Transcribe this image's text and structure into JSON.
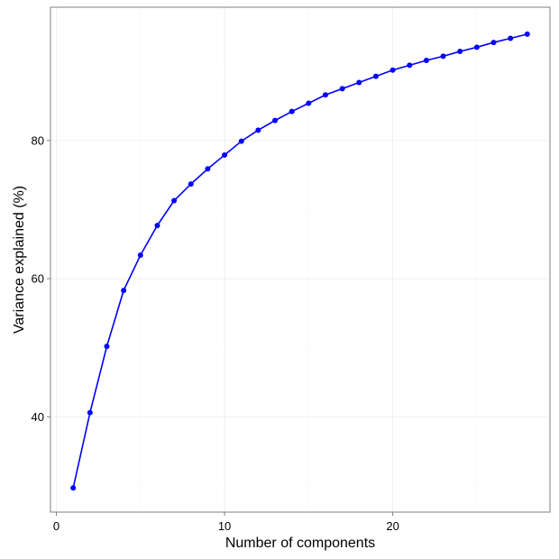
{
  "chart_data": {
    "type": "line",
    "xlabel": "Number of components",
    "ylabel": "Variance explained (%)",
    "xlim": [
      -0.35,
      29.35
    ],
    "ylim": [
      26.2,
      99.3
    ],
    "xticks": [
      0,
      10,
      20
    ],
    "yticks": [
      40,
      60,
      80
    ],
    "grid": true,
    "x": [
      1,
      2,
      3,
      4,
      5,
      6,
      7,
      8,
      9,
      10,
      11,
      12,
      13,
      14,
      15,
      16,
      17,
      18,
      19,
      20,
      21,
      22,
      23,
      24,
      25,
      26,
      27,
      28
    ],
    "series": [
      {
        "color": "#0000ff",
        "values": [
          29.7,
          40.6,
          50.2,
          58.3,
          63.4,
          67.7,
          71.3,
          73.7,
          75.9,
          77.9,
          79.9,
          81.5,
          82.9,
          84.2,
          85.4,
          86.6,
          87.5,
          88.4,
          89.3,
          90.2,
          90.9,
          91.6,
          92.2,
          92.9,
          93.5,
          94.2,
          94.8,
          95.4
        ]
      }
    ]
  }
}
